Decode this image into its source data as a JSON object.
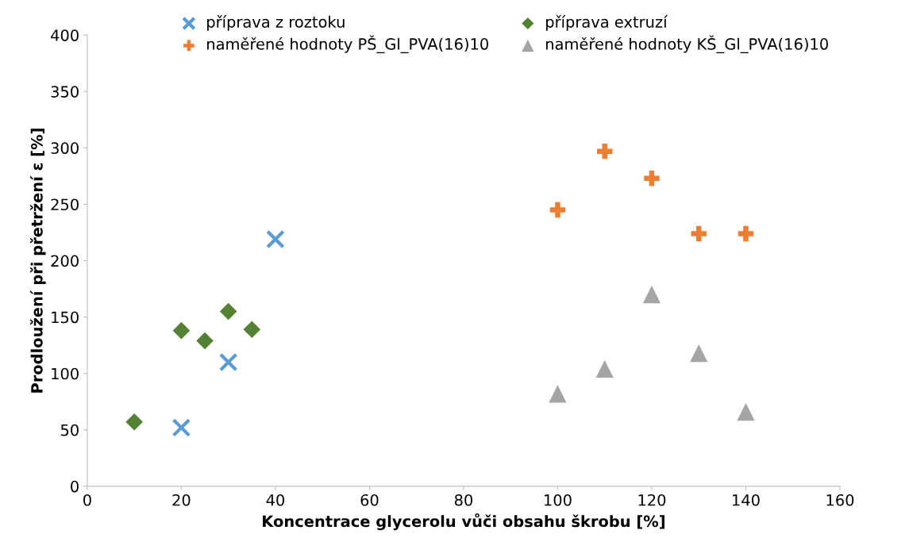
{
  "chart_data": {
    "type": "scatter",
    "xlabel": "Koncentrace glycerolu vůči obsahu škrobu [%]",
    "ylabel": "Prodloužení při přetržení ε [%]",
    "xlim": [
      0,
      160
    ],
    "xticks": [
      0,
      20,
      40,
      60,
      80,
      100,
      120,
      140,
      160
    ],
    "ylim": [
      0,
      400
    ],
    "yticks": [
      0,
      50,
      100,
      150,
      200,
      250,
      300,
      350,
      400
    ],
    "grid": false,
    "legend": "top",
    "series": [
      {
        "name": "příprava z roztoku",
        "color": "#5b9bd5",
        "marker": "cross",
        "x": [
          20,
          30,
          40
        ],
        "values": [
          52,
          110,
          219
        ]
      },
      {
        "name": "příprava extruzí",
        "color": "#548235",
        "marker": "diamond",
        "x": [
          10,
          20,
          25,
          30,
          35
        ],
        "values": [
          57,
          138,
          129,
          155,
          139
        ]
      },
      {
        "name": "naměřené hodnoty PŠ_Gl_PVA(16)10",
        "color": "#ed7d31",
        "marker": "plus",
        "x": [
          100,
          110,
          120,
          130,
          140
        ],
        "values": [
          245,
          297,
          273,
          224,
          224
        ]
      },
      {
        "name": "naměřené hodnoty KŠ_Gl_PVA(16)10",
        "color": "#a5a5a5",
        "marker": "triangle",
        "x": [
          100,
          110,
          120,
          130,
          140
        ],
        "values": [
          82,
          104,
          170,
          118,
          66
        ]
      }
    ]
  }
}
